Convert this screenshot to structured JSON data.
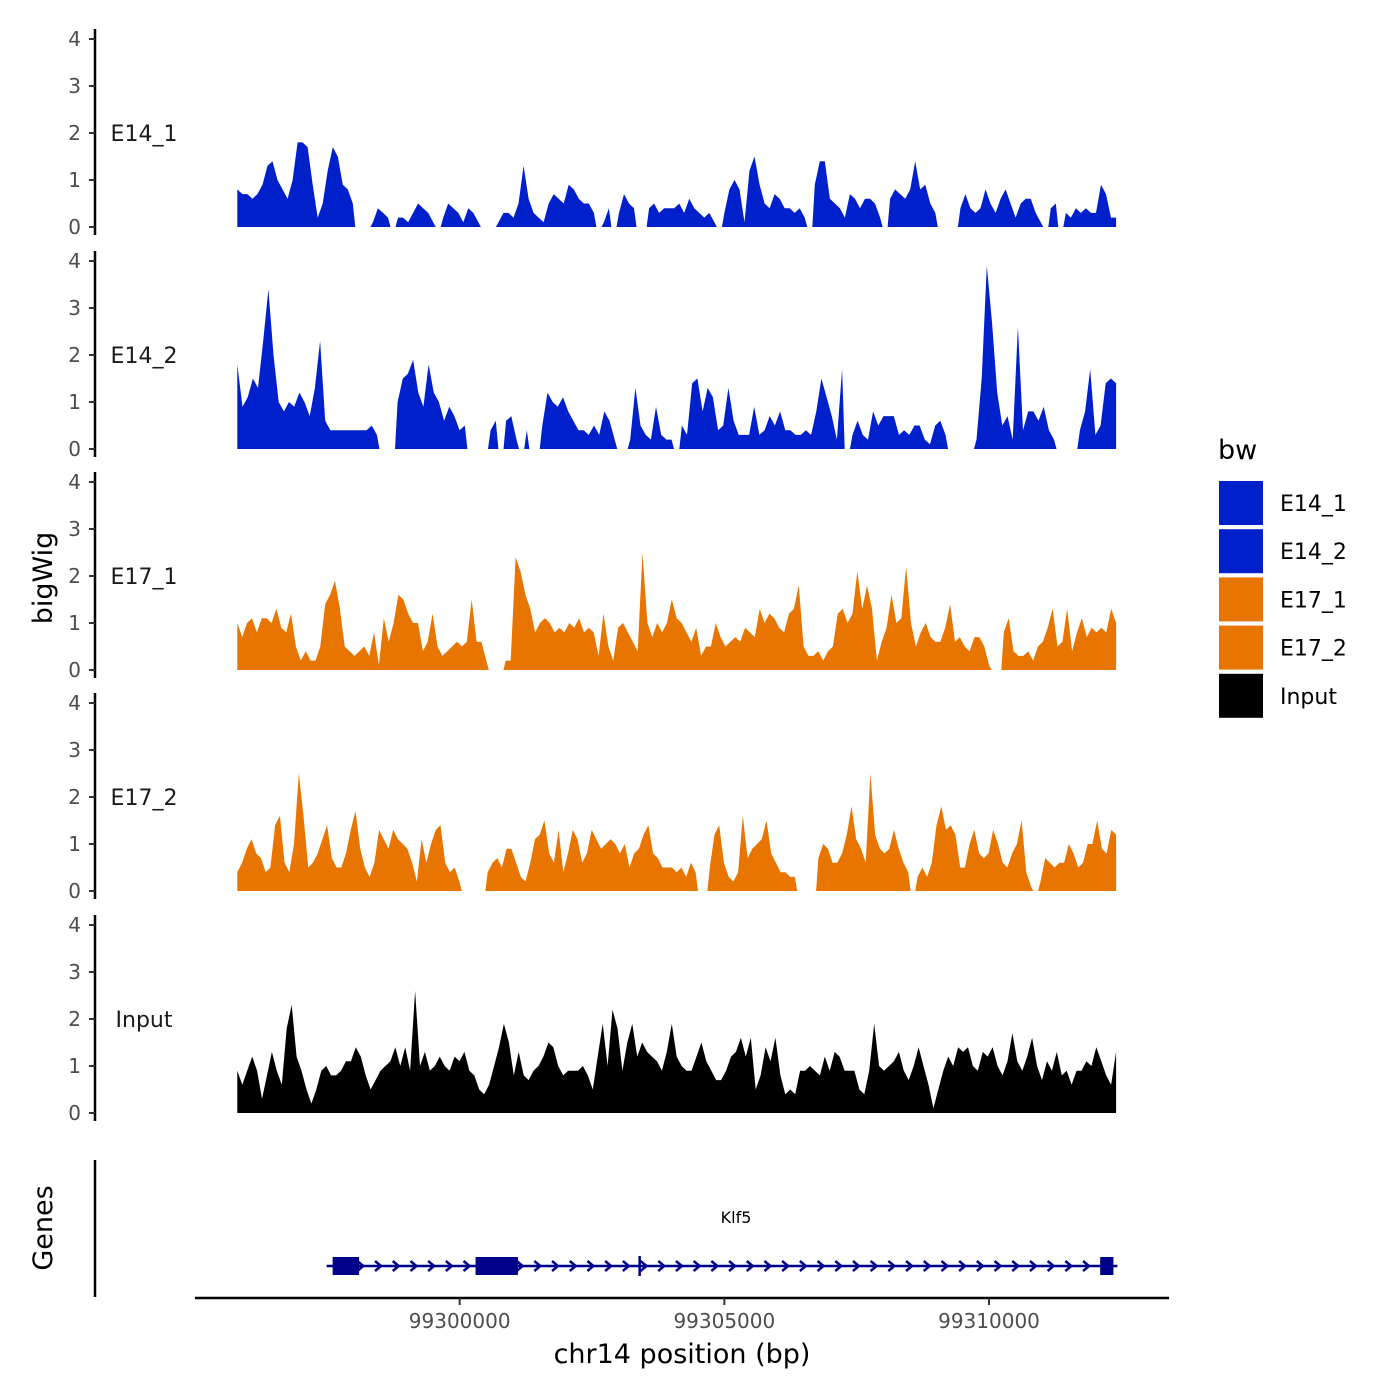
{
  "chart_data": {
    "type": "area",
    "ylabel": "bigWig",
    "xlabel": "chr14 position (bp)",
    "ylim": [
      0,
      4
    ],
    "yticks": [
      "0",
      "1",
      "2",
      "3",
      "4"
    ],
    "xlim": [
      99295000,
      99313400
    ],
    "xticks": [
      99300000,
      99305000,
      99310000
    ],
    "xtick_labels": [
      "99300000",
      "99305000",
      "99310000"
    ],
    "x_start": 99295800,
    "x_end": 99312400,
    "colors": {
      "E14": "#0020CC",
      "E17": "#E87500",
      "Input": "#000000",
      "gene": "#00008B"
    },
    "tracks": [
      {
        "name": "E14_1",
        "color": "#0020CC",
        "x_start": 99295800,
        "x_end": 99312400,
        "values": [
          0.8,
          0.7,
          0.7,
          0.6,
          0.7,
          0.9,
          1.3,
          1.4,
          1.0,
          0.8,
          0.6,
          1.0,
          1.8,
          1.8,
          1.7,
          0.9,
          0.2,
          0.5,
          1.2,
          1.7,
          1.5,
          0.9,
          0.8,
          0.5,
          0,
          0,
          0,
          0.1,
          0.4,
          0.3,
          0.2,
          0,
          0.2,
          0.2,
          0.1,
          0.3,
          0.5,
          0.4,
          0.3,
          0.1,
          0,
          0.2,
          0.5,
          0.4,
          0.3,
          0.1,
          0.4,
          0.3,
          0.1,
          0,
          0,
          0,
          0.1,
          0.3,
          0.3,
          0.2,
          0.5,
          1.3,
          0.6,
          0.3,
          0.2,
          0.1,
          0.5,
          0.7,
          0.6,
          0.5,
          0.9,
          0.8,
          0.6,
          0.5,
          0.5,
          0.3,
          0,
          0.1,
          0.4,
          0,
          0.3,
          0.7,
          0.5,
          0.4,
          0,
          0,
          0.4,
          0.5,
          0.3,
          0.4,
          0.4,
          0.4,
          0.5,
          0.3,
          0.6,
          0.4,
          0.3,
          0.2,
          0.3,
          0.1,
          0,
          0.3,
          0.8,
          1.0,
          0.8,
          0.1,
          1.2,
          1.5,
          0.9,
          0.5,
          0.4,
          0.7,
          0.6,
          0.4,
          0.4,
          0.3,
          0.4,
          0.2,
          0,
          0.9,
          1.4,
          1.4,
          0.6,
          0.5,
          0.4,
          0.2,
          0.7,
          0.6,
          0.4,
          0.6,
          0.6,
          0.5,
          0.2,
          0,
          0.6,
          0.8,
          0.7,
          0.6,
          0.8,
          1.4,
          0.8,
          0.9,
          0.5,
          0.3,
          0,
          0,
          0,
          0,
          0.4,
          0.7,
          0.4,
          0.3,
          0.4,
          0.8,
          0.5,
          0.3,
          0.6,
          0.8,
          0.5,
          0.2,
          0.5,
          0.6,
          0.6,
          0.3,
          0.1,
          0,
          0.4,
          0.5,
          0,
          0.3,
          0.2,
          0.4,
          0.3,
          0.4,
          0.3,
          0.3,
          0.9,
          0.7,
          0.2,
          0.2
        ]
      },
      {
        "name": "E14_2",
        "color": "#0020CC",
        "x_start": 99295800,
        "x_end": 99312400,
        "values": [
          1.8,
          0.9,
          1.1,
          1.5,
          1.3,
          2.3,
          3.4,
          2.0,
          1.0,
          0.8,
          1.0,
          0.9,
          1.2,
          1.0,
          0.7,
          1.3,
          2.3,
          0.6,
          0.4,
          0.4,
          0.4,
          0.4,
          0.4,
          0.4,
          0.4,
          0.4,
          0.5,
          0.3,
          0,
          0,
          0,
          1.0,
          1.5,
          1.6,
          1.9,
          1.2,
          0.9,
          1.8,
          1.2,
          1.0,
          0.6,
          0.9,
          0.7,
          0.4,
          0.5,
          0,
          0,
          0,
          0,
          0.4,
          0.6,
          0,
          0.6,
          0.7,
          0.2,
          0,
          0.4,
          0,
          0,
          0.5,
          1.2,
          1.0,
          0.9,
          1.1,
          0.8,
          0.6,
          0.4,
          0.4,
          0.3,
          0.5,
          0.3,
          0.8,
          0.6,
          0.2,
          0,
          0,
          0.2,
          1.3,
          0.5,
          0.3,
          0.2,
          0.9,
          0.3,
          0.2,
          0.2,
          0,
          0.5,
          0.3,
          1.4,
          1.5,
          0.8,
          1.3,
          1.1,
          0.4,
          0.5,
          1.3,
          0.6,
          0.3,
          0.3,
          0.3,
          0.9,
          0.3,
          0.4,
          0.7,
          0.5,
          0.8,
          0.4,
          0.4,
          0.3,
          0.3,
          0.4,
          0.3,
          0.8,
          1.5,
          1.1,
          0.7,
          0.2,
          1.7,
          0,
          0.3,
          0.6,
          0.3,
          0.2,
          0.8,
          0.5,
          0.7,
          0.7,
          0.7,
          0.3,
          0.4,
          0.3,
          0.5,
          0.5,
          0.2,
          0.1,
          0.5,
          0.6,
          0.3,
          0,
          0,
          0,
          0,
          0,
          0.2,
          1.5,
          3.9,
          2.7,
          1.2,
          0.5,
          0.7,
          0.2,
          2.6,
          0.4,
          0.8,
          0.8,
          0.6,
          0.9,
          0.4,
          0.2,
          0,
          0,
          0,
          0,
          0.4,
          0.8,
          1.7,
          0.3,
          0.5,
          1.4,
          1.5,
          1.4
        ]
      },
      {
        "name": "E17_1",
        "color": "#E87500",
        "x_start": 99295800,
        "x_end": 99312400,
        "values": [
          1.0,
          0.7,
          1.0,
          1.1,
          0.8,
          1.1,
          1.1,
          1.0,
          1.3,
          0.9,
          0.8,
          1.2,
          0.5,
          0.2,
          0.4,
          0.2,
          0.2,
          0.5,
          1.4,
          1.6,
          1.9,
          1.3,
          0.5,
          0.4,
          0.3,
          0.4,
          0.5,
          0.3,
          0.8,
          0.1,
          1.1,
          0.6,
          1.0,
          1.6,
          1.5,
          1.2,
          1.0,
          1.0,
          0.4,
          0.6,
          1.2,
          0.5,
          0.3,
          0.4,
          0.5,
          0.6,
          0.5,
          0.6,
          1.5,
          0.6,
          0.6,
          0.2,
          0,
          0,
          0,
          0.2,
          0.2,
          2.4,
          2.1,
          1.6,
          1.3,
          0.8,
          1.0,
          1.1,
          1.0,
          0.8,
          0.9,
          0.8,
          1.0,
          0.9,
          1.1,
          0.8,
          0.9,
          0.8,
          0.3,
          1.2,
          0.5,
          0.2,
          0.9,
          1.0,
          0.8,
          0.6,
          0.4,
          2.5,
          1.0,
          0.7,
          1.0,
          0.8,
          1.0,
          1.5,
          1.1,
          1.0,
          0.8,
          0.6,
          0.9,
          0.3,
          0.5,
          0.5,
          1.0,
          0.7,
          0.5,
          0.6,
          0.7,
          0.6,
          0.9,
          0.8,
          0.7,
          1.3,
          1.0,
          1.2,
          1.1,
          0.9,
          0.8,
          1.2,
          1.3,
          1.8,
          0.5,
          0.3,
          0.3,
          0.4,
          0.2,
          0.4,
          0.5,
          1.2,
          1.3,
          1.0,
          1.2,
          2.1,
          1.3,
          1.8,
          1.3,
          0.2,
          0.6,
          0.9,
          1.6,
          1.0,
          1.1,
          2.2,
          1.0,
          0.5,
          0.8,
          1.0,
          0.7,
          0.6,
          0.6,
          0.9,
          1.4,
          0.6,
          0.7,
          0.5,
          0.4,
          0.7,
          0.7,
          0.5,
          0.1,
          0,
          0,
          0.8,
          1.1,
          0.4,
          0.3,
          0.3,
          0.4,
          0.2,
          0.5,
          0.6,
          0.9,
          1.3,
          0.5,
          0.6,
          1.3,
          0.4,
          0.8,
          1.1,
          0.7,
          0.9,
          0.8,
          0.9,
          0.8,
          1.3,
          1.0
        ]
      },
      {
        "name": "E17_2",
        "color": "#E87500",
        "x_start": 99295800,
        "x_end": 99312400,
        "values": [
          0.4,
          0.6,
          0.9,
          1.1,
          0.8,
          0.7,
          0.4,
          0.5,
          1.4,
          1.6,
          0.6,
          0.4,
          1.0,
          2.5,
          1.6,
          0.5,
          0.6,
          0.8,
          1.1,
          1.4,
          0.7,
          0.5,
          0.5,
          0.8,
          1.3,
          1.7,
          0.9,
          0.5,
          0.3,
          0.6,
          1.3,
          1.1,
          0.9,
          1.3,
          1.1,
          1.0,
          0.9,
          0.6,
          0.2,
          1.1,
          0.6,
          1.0,
          1.3,
          1.4,
          0.6,
          0.4,
          0.5,
          0.2,
          0,
          0,
          0,
          0,
          0,
          0.4,
          0.6,
          0.7,
          0.5,
          0.9,
          0.9,
          0.6,
          0.3,
          0.2,
          0.6,
          1.1,
          1.2,
          1.5,
          0.8,
          0.6,
          1.3,
          0.4,
          0.8,
          1.3,
          1.1,
          0.6,
          0.8,
          1.3,
          1.1,
          0.9,
          1.0,
          1.1,
          1.0,
          0.8,
          1.0,
          0.5,
          0.8,
          0.9,
          1.2,
          1.4,
          0.8,
          0.7,
          0.5,
          0.5,
          0.5,
          0.4,
          0.5,
          0.3,
          0.6,
          0.4,
          0,
          0,
          0.5,
          1.2,
          1.4,
          0.6,
          0.3,
          0.2,
          0.4,
          1.6,
          0.7,
          0.9,
          1.0,
          1.1,
          1.5,
          0.8,
          0.6,
          0.4,
          0.4,
          0.3,
          0.3,
          0,
          0,
          0,
          0,
          0.7,
          1.0,
          0.9,
          0.6,
          0.6,
          0.8,
          1.2,
          1.8,
          1.1,
          0.9,
          0.6,
          2.5,
          1.2,
          0.9,
          0.8,
          0.9,
          1.3,
          0.9,
          0.6,
          0.4,
          0,
          0.3,
          0.5,
          0.3,
          0.6,
          1.4,
          1.8,
          1.3,
          1.4,
          1.2,
          0.5,
          0.5,
          1.0,
          1.3,
          0.8,
          0.7,
          0.8,
          1.3,
          1.0,
          0.6,
          0.5,
          0.8,
          1.0,
          1.5,
          0.4,
          0.1,
          0,
          0.2,
          0.7,
          0.6,
          0.5,
          0.6,
          0.6,
          1.0,
          0.8,
          0.5,
          0.6,
          1.0,
          1.0,
          1.5,
          0.9,
          0.8,
          1.3,
          1.2
        ]
      },
      {
        "name": "Input",
        "color": "#000000",
        "x_start": 99295800,
        "x_end": 99312400,
        "values": [
          0.9,
          0.6,
          0.9,
          1.2,
          0.9,
          0.3,
          0.8,
          1.3,
          0.9,
          0.6,
          1.8,
          2.3,
          1.2,
          0.9,
          0.5,
          0.2,
          0.5,
          0.9,
          1.0,
          0.8,
          0.8,
          0.9,
          1.1,
          1.1,
          1.4,
          1.2,
          0.8,
          0.5,
          0.7,
          0.9,
          1.0,
          1.1,
          1.4,
          1.0,
          1.4,
          0.9,
          2.6,
          1.0,
          1.3,
          0.9,
          1.0,
          1.2,
          1.0,
          0.9,
          1.2,
          1.1,
          1.3,
          0.9,
          0.8,
          0.5,
          0.4,
          0.6,
          1.0,
          1.4,
          1.9,
          1.5,
          0.8,
          1.3,
          0.8,
          0.7,
          0.9,
          1.0,
          1.2,
          1.5,
          1.4,
          1.0,
          0.8,
          0.9,
          0.9,
          0.9,
          1.0,
          0.8,
          0.5,
          1.2,
          1.9,
          1.0,
          2.2,
          1.8,
          0.9,
          1.5,
          1.9,
          1.2,
          1.5,
          1.3,
          1.2,
          1.1,
          0.9,
          1.3,
          1.9,
          1.2,
          1.0,
          0.9,
          0.9,
          1.2,
          1.5,
          1.1,
          0.9,
          0.7,
          0.7,
          0.9,
          1.2,
          1.3,
          1.6,
          1.2,
          1.6,
          0.5,
          0.8,
          1.4,
          1.1,
          1.6,
          0.8,
          0.4,
          0.5,
          0.4,
          0.9,
          0.9,
          1.0,
          0.9,
          0.8,
          1.2,
          0.9,
          1.3,
          1.2,
          0.9,
          0.9,
          0.9,
          0.5,
          0.4,
          0.9,
          1.9,
          1.0,
          0.9,
          1.0,
          1.1,
          1.3,
          0.9,
          0.7,
          1.0,
          1.4,
          1.0,
          0.6,
          0.1,
          0.5,
          0.9,
          1.2,
          1.0,
          1.4,
          1.3,
          1.4,
          1.0,
          0.9,
          1.3,
          1.2,
          1.4,
          1.0,
          0.8,
          1.1,
          1.7,
          1.1,
          0.9,
          1.2,
          1.6,
          1.0,
          0.7,
          1.1,
          0.9,
          1.3,
          0.8,
          0.9,
          0.6,
          0.9,
          0.9,
          1.1,
          1.0,
          1.4,
          1.1,
          0.8,
          0.6,
          1.3
        ]
      }
    ],
    "legend": {
      "title": "bw",
      "position": "right",
      "entries": [
        {
          "label": "E14_1",
          "color": "#0020CC"
        },
        {
          "label": "E14_2",
          "color": "#0020CC"
        },
        {
          "label": "E17_1",
          "color": "#E87500"
        },
        {
          "label": "E17_2",
          "color": "#E87500"
        },
        {
          "label": "Input",
          "color": "#000000"
        }
      ]
    },
    "gene_track": {
      "ylabel": "Genes",
      "gene": "Klf5",
      "strand": "+",
      "start": 99297600,
      "end": 99312350,
      "exons": [
        [
          99297600,
          99298100
        ],
        [
          99300300,
          99301100
        ],
        [
          99312100,
          99312350
        ]
      ],
      "marker": 99303400
    }
  }
}
